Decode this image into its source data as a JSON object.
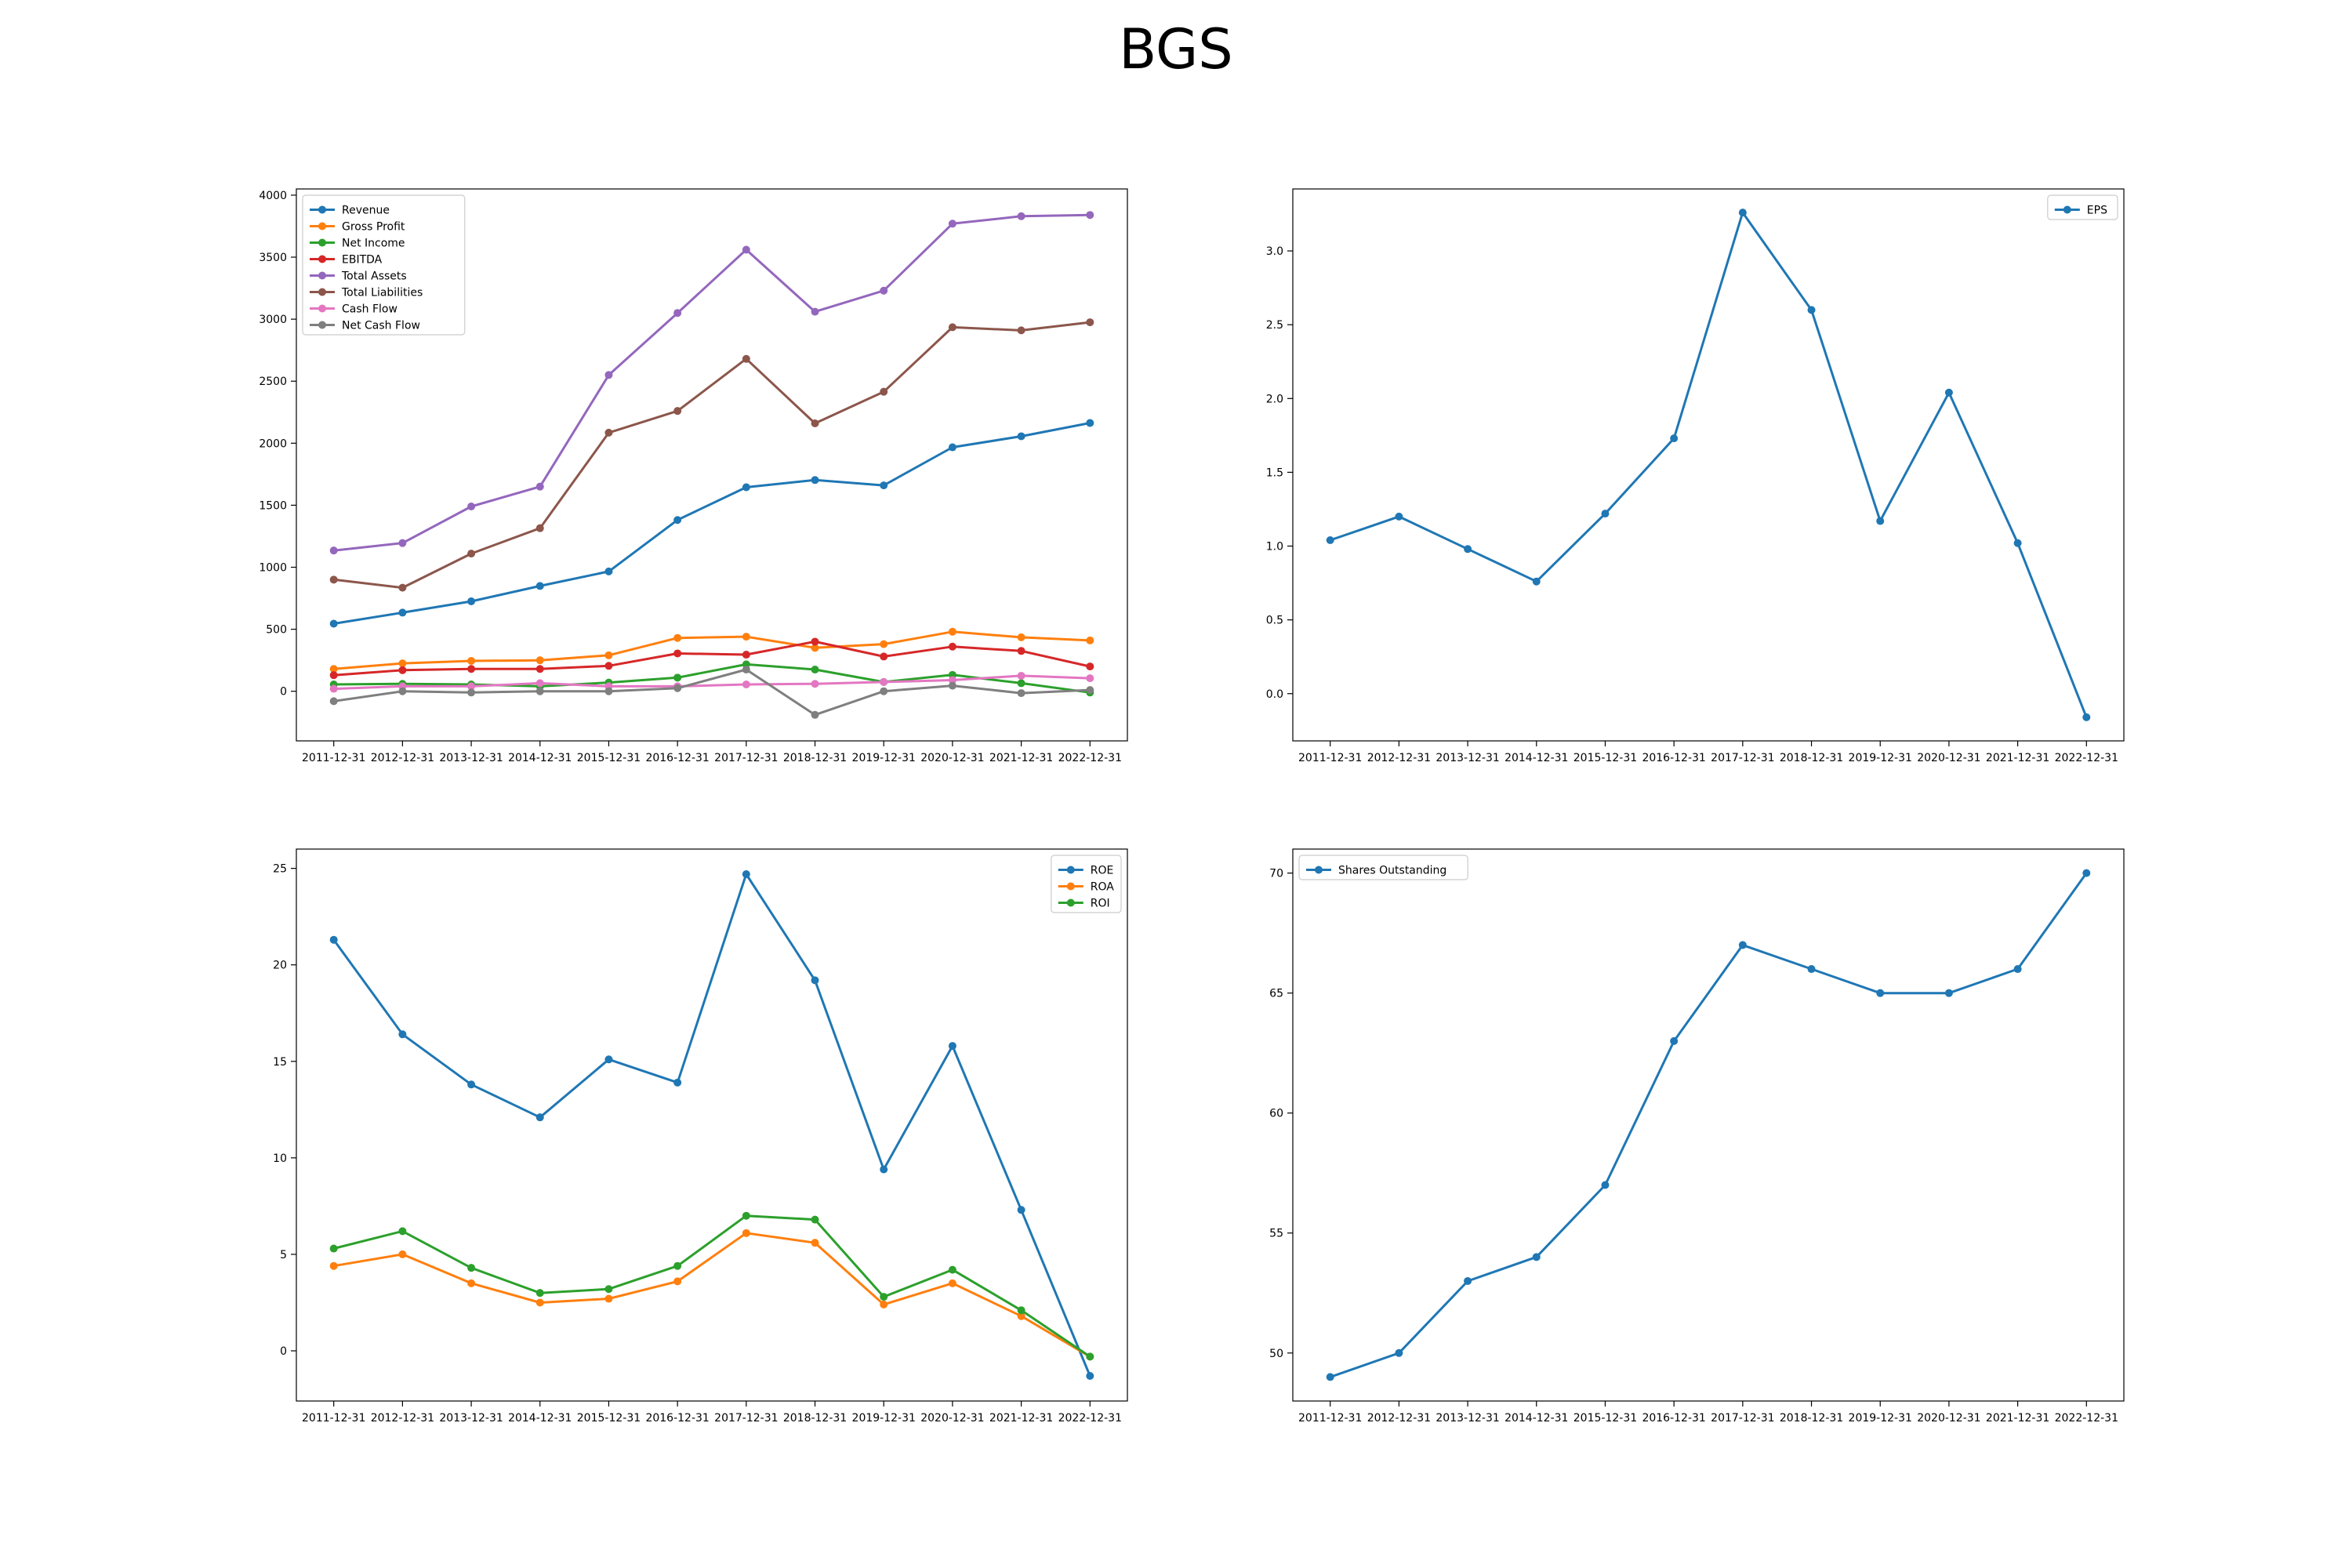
{
  "title": "BGS",
  "chart_data": [
    {
      "type": "line",
      "x": [
        "2011-12-31",
        "2012-12-31",
        "2013-12-31",
        "2014-12-31",
        "2015-12-31",
        "2016-12-31",
        "2017-12-31",
        "2018-12-31",
        "2019-12-31",
        "2020-12-31",
        "2021-12-31",
        "2022-12-31"
      ],
      "ylim": [
        -400,
        4050
      ],
      "yticks": [
        0,
        500,
        1000,
        1500,
        2000,
        2500,
        3000,
        3500,
        4000
      ],
      "legend_position": "upper-left",
      "series": [
        {
          "name": "Revenue",
          "color": "#1f77b4",
          "values": [
            545,
            634,
            725,
            849,
            966,
            1381,
            1645,
            1703,
            1660,
            1967,
            2056,
            2163
          ]
        },
        {
          "name": "Gross Profit",
          "color": "#ff7f0e",
          "values": [
            180,
            225,
            245,
            250,
            290,
            430,
            440,
            350,
            380,
            480,
            435,
            410
          ]
        },
        {
          "name": "Net Income",
          "color": "#2ca02c",
          "values": [
            55,
            60,
            55,
            40,
            70,
            110,
            217,
            175,
            75,
            132,
            65,
            -10
          ]
        },
        {
          "name": "EBITDA",
          "color": "#d62728",
          "values": [
            130,
            170,
            180,
            180,
            205,
            305,
            295,
            400,
            280,
            360,
            325,
            200
          ]
        },
        {
          "name": "Total Assets",
          "color": "#9467bd",
          "values": [
            1135,
            1195,
            1490,
            1650,
            2550,
            3050,
            3560,
            3060,
            3230,
            3770,
            3830,
            3840
          ]
        },
        {
          "name": "Total Liabilities",
          "color": "#8c564b",
          "values": [
            900,
            835,
            1110,
            1315,
            2085,
            2260,
            2680,
            2160,
            2415,
            2935,
            2910,
            2975
          ]
        },
        {
          "name": "Cash Flow",
          "color": "#e377c2",
          "values": [
            20,
            40,
            40,
            65,
            40,
            40,
            55,
            60,
            75,
            90,
            125,
            105
          ]
        },
        {
          "name": "Net Cash Flow",
          "color": "#7f7f7f",
          "values": [
            -80,
            0,
            -10,
            0,
            0,
            25,
            175,
            -190,
            0,
            45,
            -15,
            10
          ]
        }
      ]
    },
    {
      "type": "line",
      "x": [
        "2011-12-31",
        "2012-12-31",
        "2013-12-31",
        "2014-12-31",
        "2015-12-31",
        "2016-12-31",
        "2017-12-31",
        "2018-12-31",
        "2019-12-31",
        "2020-12-31",
        "2021-12-31",
        "2022-12-31"
      ],
      "ylim": [
        -0.32,
        3.42
      ],
      "yticks": [
        0.0,
        0.5,
        1.0,
        1.5,
        2.0,
        2.5,
        3.0
      ],
      "legend_position": "upper-right",
      "series": [
        {
          "name": "EPS",
          "color": "#1f77b4",
          "values": [
            1.04,
            1.2,
            0.98,
            0.76,
            1.22,
            1.73,
            3.26,
            2.6,
            1.17,
            2.04,
            1.02,
            -0.16
          ]
        }
      ]
    },
    {
      "type": "line",
      "x": [
        "2011-12-31",
        "2012-12-31",
        "2013-12-31",
        "2014-12-31",
        "2015-12-31",
        "2016-12-31",
        "2017-12-31",
        "2018-12-31",
        "2019-12-31",
        "2020-12-31",
        "2021-12-31",
        "2022-12-31"
      ],
      "ylim": [
        -2.6,
        26.0
      ],
      "yticks": [
        0,
        5,
        10,
        15,
        20,
        25
      ],
      "legend_position": "upper-right",
      "series": [
        {
          "name": "ROE",
          "color": "#1f77b4",
          "values": [
            21.3,
            16.4,
            13.8,
            12.1,
            15.1,
            13.9,
            24.7,
            19.2,
            9.4,
            15.8,
            7.3,
            -1.3
          ]
        },
        {
          "name": "ROA",
          "color": "#ff7f0e",
          "values": [
            4.4,
            5.0,
            3.5,
            2.5,
            2.7,
            3.6,
            6.1,
            5.6,
            2.4,
            3.5,
            1.8,
            -0.3
          ]
        },
        {
          "name": "ROI",
          "color": "#2ca02c",
          "values": [
            5.3,
            6.2,
            4.3,
            3.0,
            3.2,
            4.4,
            7.0,
            6.8,
            2.8,
            4.2,
            2.1,
            -0.3
          ]
        }
      ]
    },
    {
      "type": "line",
      "x": [
        "2011-12-31",
        "2012-12-31",
        "2013-12-31",
        "2014-12-31",
        "2015-12-31",
        "2016-12-31",
        "2017-12-31",
        "2018-12-31",
        "2019-12-31",
        "2020-12-31",
        "2021-12-31",
        "2022-12-31"
      ],
      "ylim": [
        48.0,
        71.0
      ],
      "yticks": [
        50,
        55,
        60,
        65,
        70
      ],
      "legend_position": "upper-left",
      "series": [
        {
          "name": "Shares Outstanding",
          "color": "#1f77b4",
          "values": [
            49,
            50,
            53,
            54,
            57,
            63,
            67,
            66,
            65,
            65,
            66,
            70
          ]
        }
      ]
    }
  ]
}
